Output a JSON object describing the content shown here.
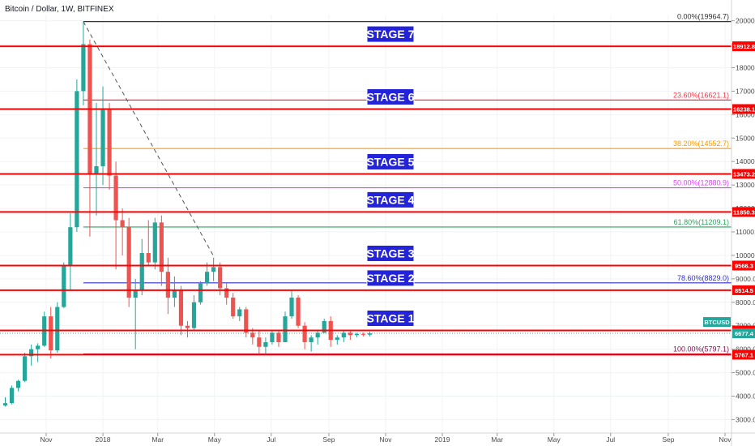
{
  "chart_data": {
    "type": "candlestick",
    "title": "Bitcoin / Dollar, 1W, BITFINEX",
    "symbol_badge": "BTCUSD",
    "price_badge_color": "#26a69a",
    "last_price": 6677.4,
    "y_ticks": [
      3000,
      4000,
      5000,
      6000,
      7000,
      8000,
      9000,
      10000,
      11000,
      12000,
      13000,
      14000,
      15000,
      16000,
      17000,
      18000,
      19000,
      20000
    ],
    "x_ticks": [
      {
        "label": "Nov",
        "date": "2017-11-01"
      },
      {
        "label": "2018",
        "date": "2018-01-01"
      },
      {
        "label": "Mar",
        "date": "2018-03-01"
      },
      {
        "label": "May",
        "date": "2018-05-01"
      },
      {
        "label": "Jul",
        "date": "2018-07-01"
      },
      {
        "label": "Sep",
        "date": "2018-09-01"
      },
      {
        "label": "Nov",
        "date": "2018-11-01"
      },
      {
        "label": "2019",
        "date": "2019-01-01"
      },
      {
        "label": "Mar",
        "date": "2019-03-01"
      },
      {
        "label": "May",
        "date": "2019-05-01"
      },
      {
        "label": "Jul",
        "date": "2019-07-01"
      },
      {
        "label": "Sep",
        "date": "2019-09-01"
      },
      {
        "label": "Nov",
        "date": "2019-11-01"
      }
    ],
    "stages": [
      {
        "label": "STAGE 1",
        "price": 6800.0,
        "price_label": "6800.0"
      },
      {
        "label": "STAGE 2",
        "price": 8514.5,
        "price_label": "8514.5"
      },
      {
        "label": "STAGE 3",
        "price": 9566.3,
        "price_label": "9566.3"
      },
      {
        "label": "STAGE 4",
        "price": 11850.3,
        "price_label": "11850.3"
      },
      {
        "label": "STAGE 5",
        "price": 13473.2,
        "price_label": "13473.2"
      },
      {
        "label": "STAGE 6",
        "price": 16238.1,
        "price_label": "16238.1"
      },
      {
        "label": "STAGE 7",
        "price": 18912.8,
        "price_label": "18912.8"
      }
    ],
    "bottom_line": {
      "price": 5767.1,
      "price_label": "5767.1"
    },
    "fib_levels": [
      {
        "label": "0.00%(19964.7)",
        "price": 19964.7,
        "color": "#333333"
      },
      {
        "label": "23.60%(16621.1)",
        "price": 16621.1,
        "color": "#f23645"
      },
      {
        "label": "38.20%(14552.7)",
        "price": 14552.7,
        "color": "#ff9800"
      },
      {
        "label": "50.00%(12880.9)",
        "price": 12880.9,
        "color": "#e040fb"
      },
      {
        "label": "61.80%(11209.1)",
        "price": 11209.1,
        "color": "#26a65b"
      },
      {
        "label": "78.60%(8829.0)",
        "price": 8829.0,
        "color": "#3030d0"
      },
      {
        "label": "100.00%(5797.1)",
        "price": 5797.1,
        "color": "#880e4f"
      }
    ],
    "trend_line": {
      "from": {
        "date": "2017-12-11",
        "price": 19964.7
      },
      "to": {
        "date": "2018-05-01",
        "price": 9900
      }
    },
    "candles": [
      {
        "d": "2017-09-18",
        "o": 3600,
        "h": 3950,
        "l": 3550,
        "c": 3700
      },
      {
        "d": "2017-09-25",
        "o": 3700,
        "h": 4450,
        "l": 3650,
        "c": 4350
      },
      {
        "d": "2017-10-02",
        "o": 4350,
        "h": 4700,
        "l": 4200,
        "c": 4650
      },
      {
        "d": "2017-10-09",
        "o": 4650,
        "h": 5850,
        "l": 4600,
        "c": 5700
      },
      {
        "d": "2017-10-16",
        "o": 5700,
        "h": 6200,
        "l": 5300,
        "c": 6000
      },
      {
        "d": "2017-10-23",
        "o": 6000,
        "h": 6250,
        "l": 5450,
        "c": 6150
      },
      {
        "d": "2017-10-30",
        "o": 6150,
        "h": 7600,
        "l": 6100,
        "c": 7400
      },
      {
        "d": "2017-11-06",
        "o": 7400,
        "h": 7800,
        "l": 5600,
        "c": 5950
      },
      {
        "d": "2017-11-13",
        "o": 5950,
        "h": 8000,
        "l": 5850,
        "c": 7800
      },
      {
        "d": "2017-11-20",
        "o": 7800,
        "h": 9700,
        "l": 7750,
        "c": 9600
      },
      {
        "d": "2017-11-27",
        "o": 9600,
        "h": 11800,
        "l": 8500,
        "c": 11200
      },
      {
        "d": "2017-12-04",
        "o": 11200,
        "h": 17500,
        "l": 11000,
        "c": 17000
      },
      {
        "d": "2017-12-11",
        "o": 17000,
        "h": 19964.7,
        "l": 16400,
        "c": 19000
      },
      {
        "d": "2017-12-18",
        "o": 19000,
        "h": 19200,
        "l": 10800,
        "c": 13500
      },
      {
        "d": "2017-12-25",
        "o": 13500,
        "h": 16500,
        "l": 11700,
        "c": 13800
      },
      {
        "d": "2018-01-01",
        "o": 13800,
        "h": 17200,
        "l": 13000,
        "c": 16200
      },
      {
        "d": "2018-01-08",
        "o": 16200,
        "h": 16500,
        "l": 12800,
        "c": 13400
      },
      {
        "d": "2018-01-15",
        "o": 13400,
        "h": 14000,
        "l": 9400,
        "c": 11500
      },
      {
        "d": "2018-01-22",
        "o": 11500,
        "h": 12000,
        "l": 10000,
        "c": 11200
      },
      {
        "d": "2018-01-29",
        "o": 11200,
        "h": 11600,
        "l": 7800,
        "c": 8200
      },
      {
        "d": "2018-02-05",
        "o": 8200,
        "h": 9000,
        "l": 6000,
        "c": 8500
      },
      {
        "d": "2018-02-12",
        "o": 8500,
        "h": 10700,
        "l": 8300,
        "c": 10100
      },
      {
        "d": "2018-02-19",
        "o": 10100,
        "h": 11500,
        "l": 9600,
        "c": 9700
      },
      {
        "d": "2018-02-26",
        "o": 9700,
        "h": 11600,
        "l": 9400,
        "c": 11400
      },
      {
        "d": "2018-03-05",
        "o": 11400,
        "h": 11700,
        "l": 8700,
        "c": 9300
      },
      {
        "d": "2018-03-12",
        "o": 9300,
        "h": 9900,
        "l": 7500,
        "c": 8200
      },
      {
        "d": "2018-03-19",
        "o": 8200,
        "h": 9100,
        "l": 7800,
        "c": 8500
      },
      {
        "d": "2018-03-26",
        "o": 8500,
        "h": 8700,
        "l": 6600,
        "c": 7000
      },
      {
        "d": "2018-04-02",
        "o": 7000,
        "h": 7200,
        "l": 6500,
        "c": 6900
      },
      {
        "d": "2018-04-09",
        "o": 6900,
        "h": 8300,
        "l": 6800,
        "c": 8000
      },
      {
        "d": "2018-04-16",
        "o": 8000,
        "h": 8900,
        "l": 7900,
        "c": 8800
      },
      {
        "d": "2018-04-23",
        "o": 8800,
        "h": 9700,
        "l": 8700,
        "c": 9300
      },
      {
        "d": "2018-04-30",
        "o": 9300,
        "h": 9900,
        "l": 8900,
        "c": 9500
      },
      {
        "d": "2018-05-07",
        "o": 9500,
        "h": 9700,
        "l": 8300,
        "c": 8600
      },
      {
        "d": "2018-05-14",
        "o": 8600,
        "h": 8800,
        "l": 7900,
        "c": 8200
      },
      {
        "d": "2018-05-21",
        "o": 8200,
        "h": 8400,
        "l": 7300,
        "c": 7400
      },
      {
        "d": "2018-05-28",
        "o": 7400,
        "h": 7800,
        "l": 7200,
        "c": 7700
      },
      {
        "d": "2018-06-04",
        "o": 7700,
        "h": 7800,
        "l": 6500,
        "c": 6700
      },
      {
        "d": "2018-06-11",
        "o": 6700,
        "h": 6900,
        "l": 6200,
        "c": 6500
      },
      {
        "d": "2018-06-18",
        "o": 6500,
        "h": 6800,
        "l": 5800,
        "c": 6100
      },
      {
        "d": "2018-06-25",
        "o": 6100,
        "h": 6500,
        "l": 5750,
        "c": 6300
      },
      {
        "d": "2018-07-02",
        "o": 6300,
        "h": 6800,
        "l": 6200,
        "c": 6700
      },
      {
        "d": "2018-07-09",
        "o": 6700,
        "h": 6800,
        "l": 6100,
        "c": 6300
      },
      {
        "d": "2018-07-16",
        "o": 6300,
        "h": 7600,
        "l": 6300,
        "c": 7400
      },
      {
        "d": "2018-07-23",
        "o": 7400,
        "h": 8500,
        "l": 7300,
        "c": 8200
      },
      {
        "d": "2018-07-30",
        "o": 8200,
        "h": 8300,
        "l": 6900,
        "c": 7000
      },
      {
        "d": "2018-08-06",
        "o": 7000,
        "h": 7150,
        "l": 6000,
        "c": 6300
      },
      {
        "d": "2018-08-13",
        "o": 6300,
        "h": 6600,
        "l": 5900,
        "c": 6500
      },
      {
        "d": "2018-08-20",
        "o": 6500,
        "h": 6800,
        "l": 6200,
        "c": 6700
      },
      {
        "d": "2018-08-27",
        "o": 6700,
        "h": 7300,
        "l": 6700,
        "c": 7200
      },
      {
        "d": "2018-09-03",
        "o": 7200,
        "h": 7400,
        "l": 6100,
        "c": 6400
      },
      {
        "d": "2018-09-10",
        "o": 6400,
        "h": 6600,
        "l": 6200,
        "c": 6500
      },
      {
        "d": "2018-09-17",
        "o": 6500,
        "h": 6800,
        "l": 6300,
        "c": 6700
      },
      {
        "d": "2018-09-24",
        "o": 6700,
        "h": 6800,
        "l": 6400,
        "c": 6600
      },
      {
        "d": "2018-10-01",
        "o": 6600,
        "h": 6700,
        "l": 6500,
        "c": 6650
      },
      {
        "d": "2018-10-08",
        "o": 6650,
        "h": 6700,
        "l": 6550,
        "c": 6620
      },
      {
        "d": "2018-10-15",
        "o": 6620,
        "h": 6750,
        "l": 6550,
        "c": 6677.4
      }
    ]
  }
}
